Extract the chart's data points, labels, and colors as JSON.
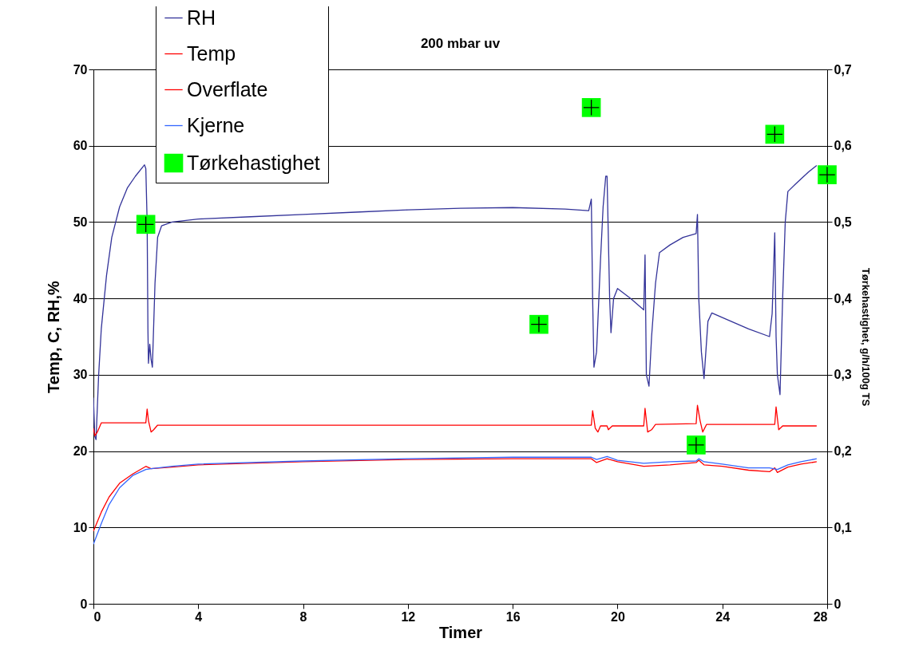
{
  "chart_data": {
    "type": "line",
    "title": "200 mbar uv",
    "xlabel": "Timer",
    "ylabel": "Temp, C, RH,%",
    "y2label": "Tørkehastighet, g/h/100g TS",
    "xlim": [
      0,
      28
    ],
    "xticks": [
      0,
      4,
      8,
      12,
      16,
      20,
      24,
      28
    ],
    "ylim": [
      0,
      70
    ],
    "yticks": [
      0,
      10,
      20,
      30,
      40,
      50,
      60,
      70
    ],
    "y2lim": [
      0,
      0.7
    ],
    "y2ticks": [
      {
        "value": 0,
        "label": "0"
      },
      {
        "value": 0.1,
        "label": "0,1"
      },
      {
        "value": 0.2,
        "label": "0,2"
      },
      {
        "value": 0.3,
        "label": "0,3"
      },
      {
        "value": 0.4,
        "label": "0,4"
      },
      {
        "value": 0.5,
        "label": "0,5"
      },
      {
        "value": 0.6,
        "label": "0,6"
      },
      {
        "value": 0.7,
        "label": "0,7"
      }
    ],
    "grid": "y",
    "legend": "top left",
    "line_style": "solid",
    "series": [
      {
        "name": "RH",
        "type": "line",
        "color": "#333399",
        "x": [
          0,
          0.05,
          0.1,
          0.2,
          0.3,
          0.5,
          0.7,
          1.0,
          1.3,
          1.6,
          1.95,
          2.0,
          2.05,
          2.08,
          2.1,
          2.15,
          2.2,
          2.25,
          2.35,
          2.45,
          2.6,
          3,
          4,
          6,
          8,
          10,
          12,
          14,
          16,
          18,
          18.9,
          19.0,
          19.05,
          19.1,
          19.2,
          19.35,
          19.45,
          19.55,
          19.6,
          19.7,
          19.75,
          19.85,
          20.0,
          20.5,
          21.0,
          21.05,
          21.1,
          21.2,
          21.3,
          21.45,
          21.6,
          22,
          22.5,
          23.0,
          23.05,
          23.1,
          23.2,
          23.3,
          23.45,
          23.6,
          24,
          25,
          25.8,
          25.9,
          26.0,
          26.05,
          26.1,
          26.2,
          26.3,
          26.4,
          26.5,
          26.8,
          27.3,
          27.6
        ],
        "values": [
          27,
          22,
          21.5,
          30,
          36,
          43,
          48,
          52,
          54.5,
          56,
          57.5,
          57,
          50,
          36,
          31.5,
          34,
          32,
          31,
          42,
          48,
          49.5,
          50,
          50.4,
          50.7,
          51,
          51.3,
          51.6,
          51.8,
          51.9,
          51.7,
          51.5,
          53,
          40,
          31,
          33,
          45,
          52,
          56,
          56,
          40,
          35.5,
          40,
          41.3,
          40,
          38.5,
          45.7,
          30,
          28.5,
          35,
          42,
          46,
          47,
          48,
          48.5,
          51,
          40,
          33,
          29.5,
          37,
          38.1,
          37.5,
          36,
          35,
          38,
          48.6,
          35,
          30,
          27.4,
          40,
          50,
          54,
          55,
          56.6,
          57.4
        ]
      },
      {
        "name": "Temp",
        "type": "line",
        "color": "#ff0000",
        "x": [
          0,
          0.05,
          0.15,
          0.3,
          2.0,
          2.05,
          2.1,
          2.2,
          2.3,
          2.45,
          19.0,
          19.05,
          19.15,
          19.25,
          19.35,
          19.6,
          19.65,
          19.8,
          21.0,
          21.05,
          21.15,
          21.3,
          21.45,
          23.0,
          23.05,
          23.15,
          23.25,
          23.4,
          26.0,
          26.05,
          26.15,
          26.3,
          27.6
        ],
        "values": [
          23,
          22,
          22.5,
          23.7,
          23.7,
          25.5,
          24,
          22.5,
          22.8,
          23.4,
          23.4,
          25.3,
          23,
          22.5,
          23.3,
          23.3,
          22.8,
          23.3,
          23.3,
          25.6,
          22.5,
          22.8,
          23.5,
          23.6,
          26,
          24,
          22.5,
          23.5,
          23.5,
          25.8,
          22.8,
          23.3,
          23.3
        ]
      },
      {
        "name": "Overflate",
        "type": "line",
        "color": "#ff0000",
        "x": [
          0,
          0.3,
          0.6,
          1.0,
          1.5,
          2.0,
          2.2,
          3,
          4,
          8,
          12,
          16,
          19.0,
          19.2,
          19.6,
          20,
          21,
          22,
          23,
          23.1,
          23.3,
          24,
          25,
          25.8,
          26.0,
          26.1,
          26.5,
          27,
          27.6
        ],
        "values": [
          9.5,
          12,
          14,
          15.8,
          17,
          18,
          17.7,
          17.9,
          18.2,
          18.6,
          18.9,
          19.0,
          19.0,
          18.5,
          19.0,
          18.6,
          18,
          18.2,
          18.5,
          18.8,
          18.2,
          18,
          17.5,
          17.3,
          17.8,
          17.2,
          17.9,
          18.3,
          18.6
        ]
      },
      {
        "name": "Kjerne",
        "type": "line",
        "color": "#3366ff",
        "x": [
          0,
          0.3,
          0.6,
          1.0,
          1.5,
          2.0,
          2.2,
          3,
          4,
          8,
          12,
          16,
          19.0,
          19.2,
          19.6,
          20,
          21,
          22,
          23,
          23.1,
          23.3,
          24,
          25,
          25.8,
          26.1,
          26.5,
          27,
          27.6
        ],
        "values": [
          7.8,
          10.5,
          13,
          15.2,
          16.8,
          17.6,
          17.7,
          18,
          18.3,
          18.7,
          19.0,
          19.2,
          19.2,
          18.9,
          19.3,
          18.8,
          18.4,
          18.6,
          18.7,
          19.0,
          18.6,
          18.3,
          17.8,
          17.8,
          17.6,
          18.2,
          18.6,
          19
        ]
      },
      {
        "name": "Tørkehastighet",
        "type": "scatter",
        "axis": "y2",
        "marker": "square",
        "color": "#00ff00",
        "x": [
          2.0,
          17.0,
          19.0,
          23.0,
          26.0,
          28.0
        ],
        "values": [
          0.497,
          0.366,
          0.65,
          0.208,
          0.615,
          0.562
        ]
      }
    ]
  }
}
